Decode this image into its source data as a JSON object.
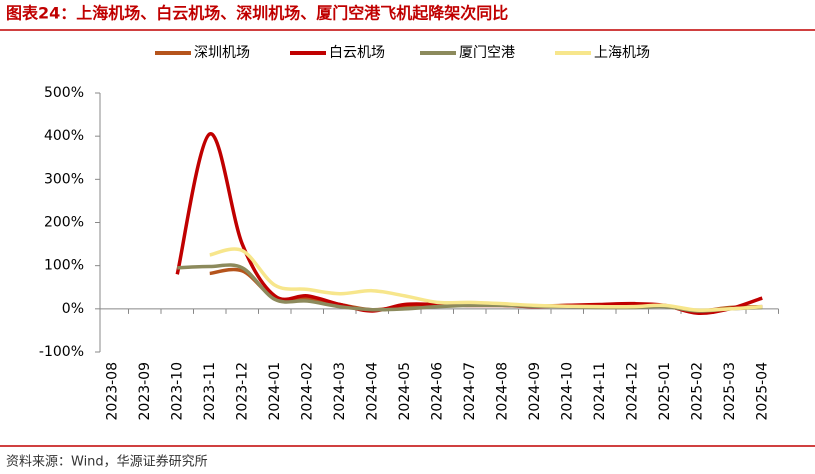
{
  "title": "图表24：上海机场、白云机场、深圳机场、厦门空港飞机起降架次同比",
  "source": "资料来源：Wind，华源证券研究所",
  "chart_data": {
    "type": "line",
    "categories": [
      "2023-08",
      "2023-09",
      "2023-10",
      "2023-11",
      "2023-12",
      "2024-01",
      "2024-02",
      "2024-03",
      "2024-04",
      "2024-05",
      "2024-06",
      "2024-07",
      "2024-08",
      "2024-09",
      "2024-10",
      "2024-11",
      "2024-12",
      "2025-01",
      "2025-02",
      "2025-03",
      "2025-04"
    ],
    "series": [
      {
        "name": "深圳机场",
        "color": "#b5541c",
        "values": [
          null,
          null,
          null,
          82,
          88,
          25,
          25,
          10,
          -2,
          5,
          8,
          8,
          8,
          6,
          8,
          8,
          8,
          6,
          -5,
          3,
          5
        ]
      },
      {
        "name": "白云机场",
        "color": "#c00000",
        "values": [
          null,
          null,
          80,
          405,
          150,
          30,
          30,
          10,
          -5,
          10,
          10,
          8,
          8,
          5,
          8,
          10,
          12,
          8,
          -10,
          0,
          25
        ]
      },
      {
        "name": "厦门空港",
        "color": "#8c8a5c",
        "values": [
          null,
          null,
          95,
          98,
          95,
          22,
          18,
          5,
          -2,
          0,
          5,
          8,
          8,
          6,
          5,
          3,
          3,
          5,
          -5,
          0,
          3
        ]
      },
      {
        "name": "上海机场",
        "color": "#f7e68c",
        "values": [
          null,
          null,
          null,
          125,
          135,
          55,
          45,
          35,
          42,
          30,
          15,
          15,
          12,
          8,
          6,
          5,
          5,
          8,
          -3,
          0,
          5
        ]
      }
    ],
    "ylim": [
      -100,
      500
    ],
    "yticks": [
      {
        "value": -100,
        "label": "-100%"
      },
      {
        "value": 0,
        "label": "0%"
      },
      {
        "value": 100,
        "label": "100%"
      },
      {
        "value": 200,
        "label": "200%"
      },
      {
        "value": 300,
        "label": "300%"
      },
      {
        "value": 400,
        "label": "400%"
      },
      {
        "value": 500,
        "label": "500%"
      }
    ]
  }
}
